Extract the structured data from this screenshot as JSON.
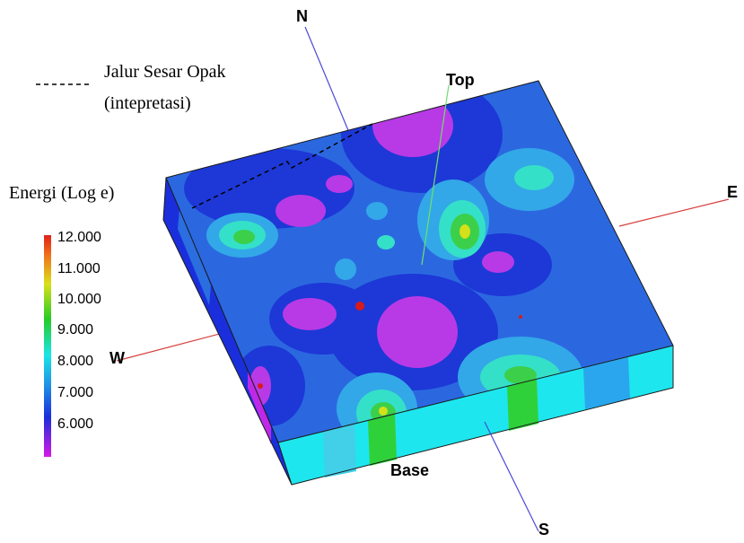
{
  "legend": {
    "fault_label_line1": "Jalur Sesar Opak",
    "fault_label_line2": "(intepretasi)",
    "colorbar_title": "Energi (Log e)",
    "colorbar_ticks": [
      "12.000",
      "11.000",
      "10.000",
      "9.000",
      "8.000",
      "7.000",
      "6.000"
    ]
  },
  "axes": {
    "north": "N",
    "south": "S",
    "east": "E",
    "west": "W",
    "top": "Top",
    "base": "Base"
  },
  "colors": {
    "low": "#cc22ee",
    "mid_low": "#1a3adb",
    "mid": "#2e6fe6",
    "cyan": "#19e6e6",
    "green": "#33cc33",
    "high": "#e23b14"
  }
}
